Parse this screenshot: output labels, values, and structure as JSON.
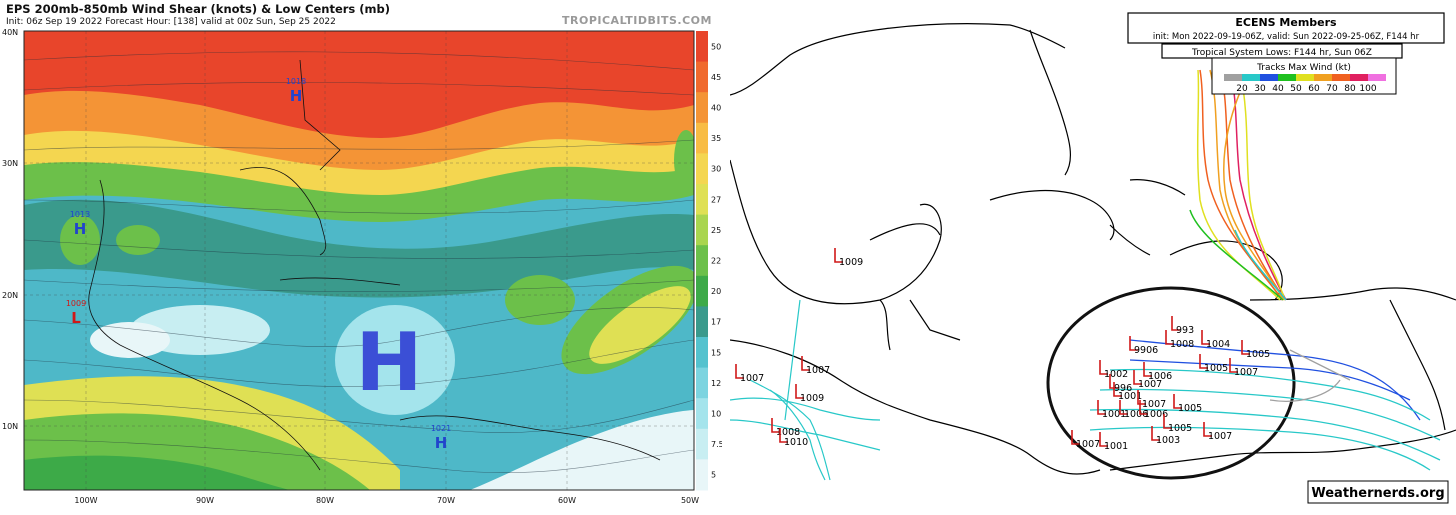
{
  "left": {
    "title": "EPS 200mb-850mb Wind Shear (knots) & Low Centers (mb)",
    "subtitle": "Init: 06z Sep 19 2022   Forecast Hour: [138]   valid at 00z Sun, Sep 25 2022",
    "watermark": "TROPICALTIDBITS.COM",
    "lat_labels": [
      "40N",
      "30N",
      "20N",
      "10N"
    ],
    "lon_labels": [
      "100W",
      "90W",
      "80W",
      "70W",
      "60W",
      "50W"
    ],
    "colorbar_labels": [
      "50",
      "45",
      "40",
      "35",
      "30",
      "27.5",
      "25",
      "22.5",
      "20",
      "17.5",
      "15",
      "12.5",
      "10",
      "7.5",
      "5"
    ],
    "colorbar_colors": [
      "#e8452b",
      "#f06a2e",
      "#f49436",
      "#f8bc44",
      "#f4d650",
      "#dfe054",
      "#a9d54f",
      "#6cc04a",
      "#3daa48",
      "#3a9a8c",
      "#54c2ce",
      "#7cd4e0",
      "#a4e4ec",
      "#c8eef2",
      "#e8f6f8"
    ],
    "centers": [
      {
        "type": "H",
        "value": "1018",
        "color": "#2244cc"
      },
      {
        "type": "H",
        "value": "1013",
        "color": "#2244cc"
      },
      {
        "type": "L",
        "value": "1009",
        "color": "#d01818"
      },
      {
        "type": "H",
        "value": "1021",
        "color": "#2244cc"
      },
      {
        "type": "H",
        "value": "",
        "color": "#3b4fd6"
      }
    ]
  },
  "right": {
    "legend_title": "ECENS Members",
    "legend_sub": "init: Mon 2022-09-19-06Z, valid: Sun 2022-09-25-06Z, F144 hr",
    "tropical_label": "Tropical System Lows: F144 hr, Sun 06Z",
    "tracks_title": "Tracks Max Wind (kt)",
    "wind_values": [
      "20",
      "30",
      "40",
      "50",
      "60",
      "70",
      "80",
      "100"
    ],
    "wind_colors": [
      "#a0a0a0",
      "#28c8c8",
      "#2050e0",
      "#20c020",
      "#e0e020",
      "#f0a020",
      "#f06020",
      "#e02060",
      "#f070e0"
    ],
    "watermark": "Weathernerds.org",
    "lows": [
      "1009",
      "1007",
      "1007",
      "1009",
      "1008",
      "1010",
      "993",
      "1008",
      "1004",
      "9906",
      "1005",
      "1002",
      "1006",
      "1007",
      "1005",
      "1007",
      "996",
      "1001",
      "1007",
      "1005",
      "1001",
      "1006",
      "1006",
      "1005",
      "1007",
      "1003",
      "1007",
      "1001"
    ]
  }
}
